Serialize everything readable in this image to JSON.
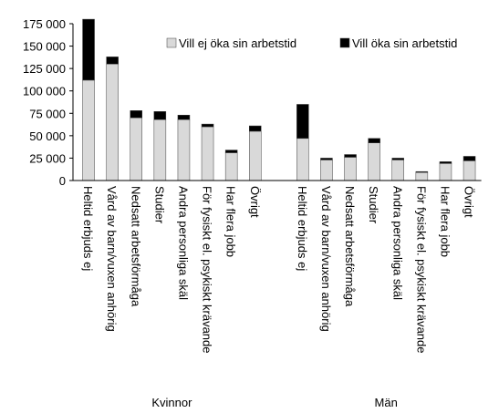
{
  "chart_data": {
    "type": "bar",
    "stacked": true,
    "title": "",
    "xlabel": "",
    "ylabel": "",
    "ylim": [
      0,
      175000
    ],
    "yticks": [
      {
        "value": 0,
        "label": "0"
      },
      {
        "value": 25000,
        "label": "25 000"
      },
      {
        "value": 50000,
        "label": "50 000"
      },
      {
        "value": 75000,
        "label": "75 000"
      },
      {
        "value": 100000,
        "label": "100 000"
      },
      {
        "value": 125000,
        "label": "125 000"
      },
      {
        "value": 150000,
        "label": "150 000"
      },
      {
        "value": 175000,
        "label": "175 000"
      }
    ],
    "grid": false,
    "legend_position": "top-right",
    "groups": [
      {
        "name": "Kvinnor",
        "categories": [
          "Heltid erbjuds ej",
          "Vård av barn/vuxen anhörig",
          "Nedsatt arbetsförmåga",
          "Studier",
          "Andra personliga skäl",
          "För fysiskt el. psykiskt krävande",
          "Har flera jobb",
          "Övrigt"
        ]
      },
      {
        "name": "Män",
        "categories": [
          "Heltid erbjuds ej",
          "Vård av barn/vuxen anhörig",
          "Nedsatt arbetsförmåga",
          "Studier",
          "Andra personliga skäl",
          "För fysiskt el. psykiskt krävande",
          "Har flera jobb",
          "Övrigt"
        ]
      }
    ],
    "series": [
      {
        "name": "Vill ej öka sin arbetstid",
        "color": "#d9d9d9",
        "values": [
          112000,
          130000,
          70000,
          68000,
          68000,
          60000,
          31000,
          55000,
          47000,
          23000,
          26000,
          42000,
          23000,
          9000,
          19000,
          22000
        ]
      },
      {
        "name": "Vill öka sin arbetstid",
        "color": "#000000",
        "values": [
          68000,
          8000,
          8000,
          9000,
          5000,
          3000,
          3000,
          6000,
          38000,
          2000,
          3000,
          5000,
          2000,
          1000,
          2000,
          5000
        ]
      }
    ]
  }
}
